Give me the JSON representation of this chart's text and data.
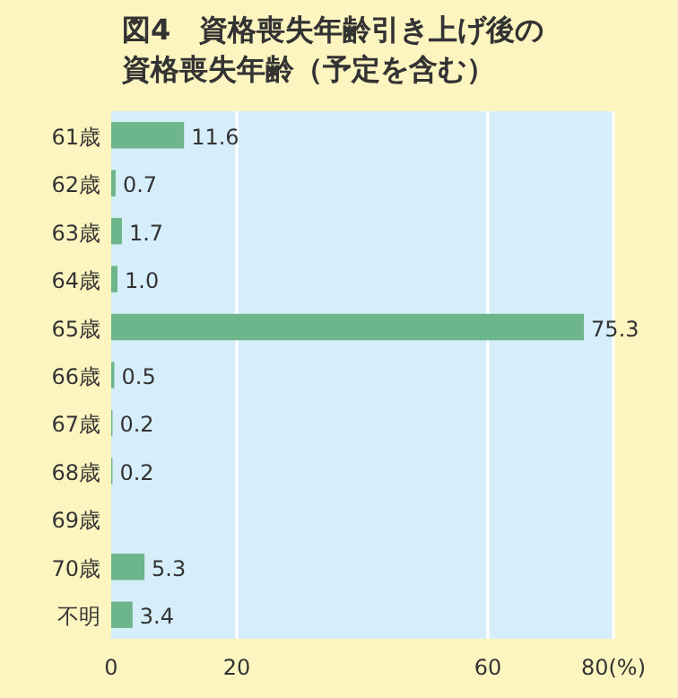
{
  "chart_data": {
    "type": "bar",
    "orientation": "horizontal",
    "title": "図4　資格喪失年齢引き上げ後の資格喪失年齢（予定を含む）",
    "categories": [
      "61歳",
      "62歳",
      "63歳",
      "64歳",
      "65歳",
      "66歳",
      "67歳",
      "68歳",
      "69歳",
      "70歳",
      "不明"
    ],
    "values": [
      11.6,
      0.7,
      1.7,
      1.0,
      75.3,
      0.5,
      0.2,
      0.2,
      null,
      5.3,
      3.4
    ],
    "value_labels": [
      "11.6",
      "0.7",
      "1.7",
      "1.0",
      "75.3",
      "0.5",
      "0.2",
      "0.2",
      null,
      "5.3",
      "3.4"
    ],
    "color": "#6db58a",
    "grid": "x",
    "xlim": [
      0,
      80
    ],
    "xticks": [
      0,
      20,
      60,
      {
        "value": 80,
        "label": "80(%)"
      }
    ]
  }
}
